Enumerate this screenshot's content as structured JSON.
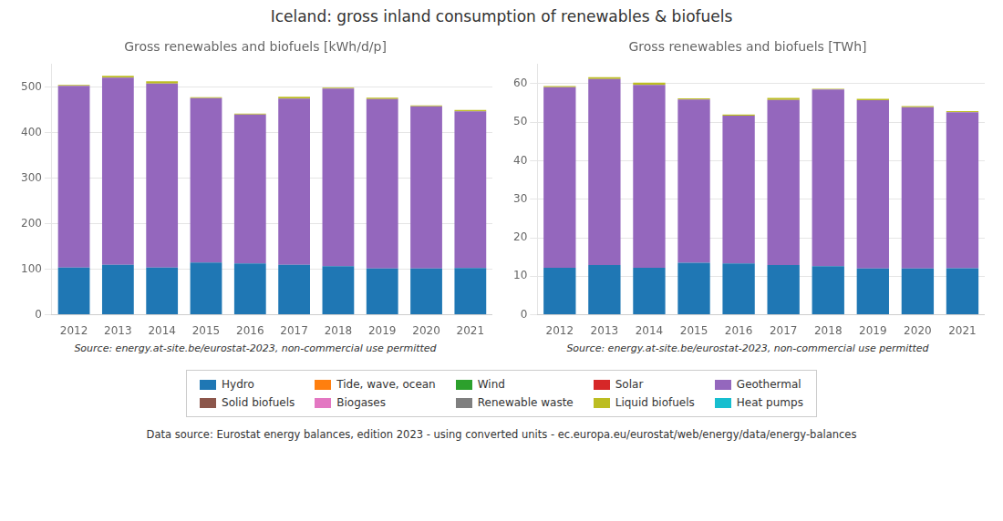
{
  "title": "Iceland: gross inland consumption of renewables & biofuels",
  "annotations": [
    "Data source: Eurostat energy balances, edition 2023 - using converted units - ec.europa.eu/eurostat/web/energy/data/energy-balances"
  ],
  "legend": "bottom",
  "chart_data": [
    {
      "type": "bar",
      "title": "Gross renewables and biofuels [kWh/d/p]",
      "stacked": true,
      "grid": true,
      "annotations": [
        "Source: energy.at-site.be/eurostat-2023, non-commercial use permitted"
      ],
      "categories": [
        "2012",
        "2013",
        "2014",
        "2015",
        "2016",
        "2017",
        "2018",
        "2019",
        "2020",
        "2021"
      ],
      "ylim": [
        0,
        550
      ],
      "yticks": [
        0,
        100,
        200,
        300,
        400,
        500
      ],
      "series": [
        {
          "name": "Hydro",
          "color": "#1f77b4",
          "values": [
            104,
            110,
            104,
            115,
            113,
            110,
            107,
            102,
            102,
            103
          ]
        },
        {
          "name": "Tide, wave, ocean",
          "color": "#ff7f0e",
          "values": [
            0,
            0,
            0,
            0,
            0,
            0,
            0,
            0,
            0,
            0
          ]
        },
        {
          "name": "Wind",
          "color": "#2ca02c",
          "values": [
            0,
            0,
            0,
            0,
            0,
            0,
            0,
            0,
            0,
            0
          ]
        },
        {
          "name": "Solar",
          "color": "#d62728",
          "values": [
            0,
            0,
            0,
            0,
            0,
            0,
            0,
            0,
            0,
            0
          ]
        },
        {
          "name": "Geothermal",
          "color": "#9467bd",
          "values": [
            399,
            411,
            404,
            361,
            327,
            365,
            390,
            372,
            356,
            344
          ]
        },
        {
          "name": "Solid biofuels",
          "color": "#8c564b",
          "values": [
            0,
            0,
            0,
            0,
            0,
            0,
            0,
            0,
            0,
            0
          ]
        },
        {
          "name": "Biogases",
          "color": "#e377c2",
          "values": [
            0,
            0,
            0,
            0,
            0,
            0,
            0,
            0,
            0,
            0
          ]
        },
        {
          "name": "Renewable waste",
          "color": "#7f7f7f",
          "values": [
            0,
            0,
            0,
            0,
            0,
            0,
            0,
            0,
            0,
            0
          ]
        },
        {
          "name": "Liquid biofuels",
          "color": "#bcbd22",
          "values": [
            2,
            4,
            5,
            2,
            2,
            4,
            2,
            3,
            2,
            3
          ]
        },
        {
          "name": "Heat pumps",
          "color": "#17becf",
          "values": [
            0,
            0,
            0,
            0,
            0,
            0,
            0,
            0,
            0,
            0
          ]
        }
      ]
    },
    {
      "type": "bar",
      "title": "Gross renewables and biofuels [TWh]",
      "stacked": true,
      "grid": true,
      "annotations": [
        "Source: energy.at-site.be/eurostat-2023, non-commercial use permitted"
      ],
      "categories": [
        "2012",
        "2013",
        "2014",
        "2015",
        "2016",
        "2017",
        "2018",
        "2019",
        "2020",
        "2021"
      ],
      "ylim": [
        0,
        65
      ],
      "yticks": [
        0,
        10,
        20,
        30,
        40,
        50,
        60
      ],
      "series": [
        {
          "name": "Hydro",
          "color": "#1f77b4",
          "values": [
            12.2,
            12.9,
            12.2,
            13.5,
            13.3,
            12.9,
            12.6,
            12.0,
            12.0,
            12.1
          ]
        },
        {
          "name": "Tide, wave, ocean",
          "color": "#ff7f0e",
          "values": [
            0,
            0,
            0,
            0,
            0,
            0,
            0,
            0,
            0,
            0
          ]
        },
        {
          "name": "Wind",
          "color": "#2ca02c",
          "values": [
            0,
            0,
            0,
            0,
            0,
            0,
            0,
            0,
            0,
            0
          ]
        },
        {
          "name": "Solar",
          "color": "#d62728",
          "values": [
            0,
            0,
            0,
            0,
            0,
            0,
            0,
            0,
            0,
            0
          ]
        },
        {
          "name": "Geothermal",
          "color": "#9467bd",
          "values": [
            46.9,
            48.3,
            47.5,
            42.4,
            38.4,
            42.9,
            45.9,
            43.7,
            41.9,
            40.5
          ]
        },
        {
          "name": "Solid biofuels",
          "color": "#8c564b",
          "values": [
            0,
            0,
            0,
            0,
            0,
            0,
            0,
            0,
            0,
            0
          ]
        },
        {
          "name": "Biogases",
          "color": "#e377c2",
          "values": [
            0,
            0,
            0,
            0,
            0,
            0,
            0,
            0,
            0,
            0
          ]
        },
        {
          "name": "Renewable waste",
          "color": "#7f7f7f",
          "values": [
            0,
            0,
            0,
            0,
            0,
            0,
            0,
            0,
            0,
            0
          ]
        },
        {
          "name": "Liquid biofuels",
          "color": "#bcbd22",
          "values": [
            0.3,
            0.5,
            0.6,
            0.3,
            0.3,
            0.5,
            0.2,
            0.4,
            0.3,
            0.3
          ]
        },
        {
          "name": "Heat pumps",
          "color": "#17becf",
          "values": [
            0,
            0,
            0,
            0,
            0,
            0,
            0,
            0,
            0,
            0
          ]
        }
      ]
    }
  ]
}
